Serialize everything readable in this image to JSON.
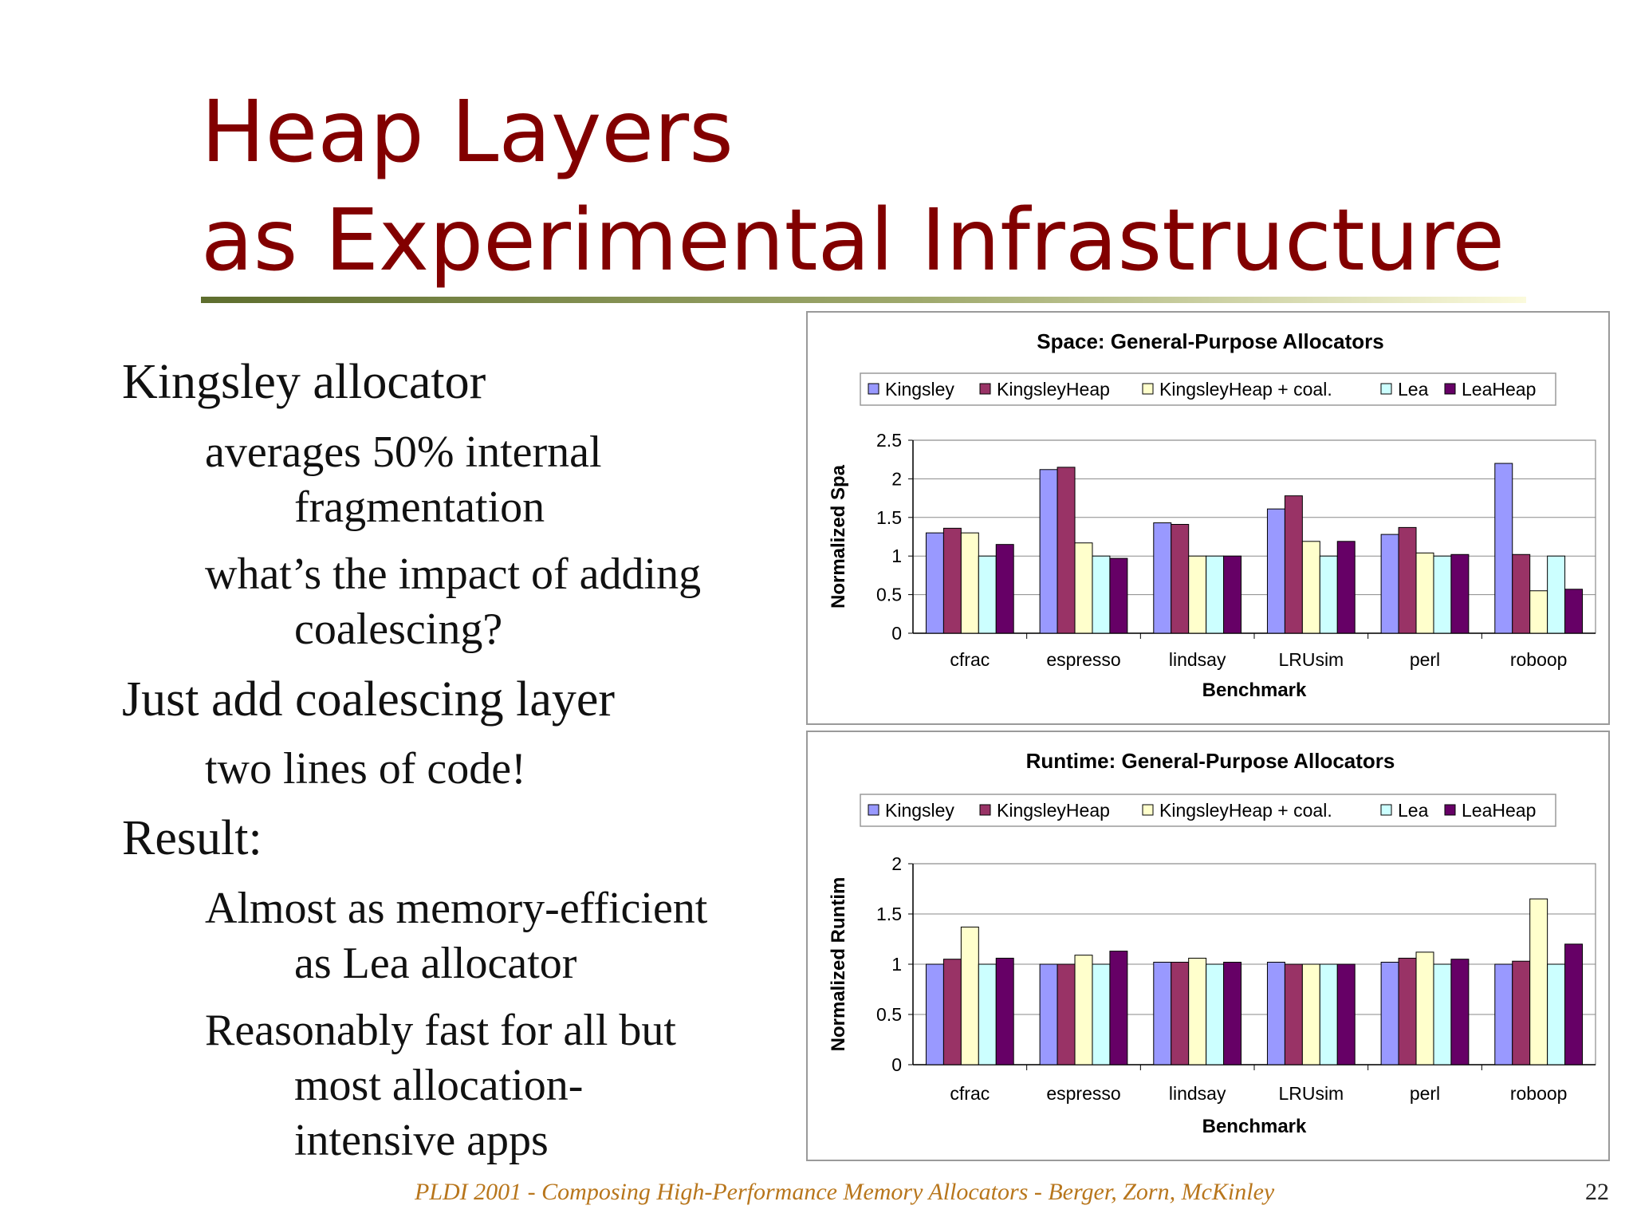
{
  "slide": {
    "title_line1": "Heap Layers",
    "title_line2": "as Experimental Infrastructure",
    "bullets": [
      {
        "level": 1,
        "text": "Kingsley allocator"
      },
      {
        "level": 2,
        "text": "averages 50% internal",
        "cont": "fragmentation"
      },
      {
        "level": 2,
        "text": "what’s the impact of adding",
        "cont": "coalescing?"
      },
      {
        "level": 1,
        "text": "Just add coalescing layer"
      },
      {
        "level": 2,
        "text": "two lines of code!"
      },
      {
        "level": 1,
        "text": "Result:"
      },
      {
        "level": 2,
        "text": "Almost as memory-efficient",
        "cont": "as Lea allocator"
      },
      {
        "level": 2,
        "text": "Reasonably fast for all but",
        "cont": "most allocation-",
        "cont2": "intensive apps"
      }
    ],
    "footer": "PLDI 2001 - Composing High-Performance Memory Allocators - Berger, Zorn, McKinley",
    "page_number": "22"
  },
  "colors": {
    "title": "#820000",
    "footer": "#b8761c",
    "series": [
      "#9999ff",
      "#993366",
      "#ffffcc",
      "#ccffff",
      "#660066"
    ]
  },
  "chart_data": [
    {
      "type": "bar",
      "title": "Space: General-Purpose Allocators",
      "xlabel": "Benchmark",
      "ylabel": "Normalized Spa",
      "ylim": [
        0,
        2.5
      ],
      "yticks": [
        "0",
        "0.5",
        "1",
        "1.5",
        "2",
        "2.5"
      ],
      "ytick_values": [
        0,
        0.5,
        1,
        1.5,
        2,
        2.5
      ],
      "legend_position": "top",
      "categories": [
        "cfrac",
        "espresso",
        "lindsay",
        "LRUsim",
        "perl",
        "roboop"
      ],
      "series": [
        {
          "name": "Kingsley",
          "values": [
            1.3,
            2.12,
            1.43,
            1.61,
            1.28,
            2.2
          ]
        },
        {
          "name": "KingsleyHeap",
          "values": [
            1.36,
            2.15,
            1.41,
            1.78,
            1.37,
            1.02
          ]
        },
        {
          "name": "KingsleyHeap + coal.",
          "values": [
            1.3,
            1.17,
            1.0,
            1.19,
            1.04,
            0.55
          ]
        },
        {
          "name": "Lea",
          "values": [
            1.0,
            1.0,
            1.0,
            1.0,
            1.0,
            1.0
          ]
        },
        {
          "name": "LeaHeap",
          "values": [
            1.15,
            0.97,
            1.0,
            1.19,
            1.02,
            0.57
          ]
        }
      ]
    },
    {
      "type": "bar",
      "title": "Runtime: General-Purpose Allocators",
      "xlabel": "Benchmark",
      "ylabel": "Normalized Runtim",
      "ylim": [
        0,
        2
      ],
      "yticks": [
        "0",
        "0.5",
        "1",
        "1.5",
        "2"
      ],
      "ytick_values": [
        0,
        0.5,
        1,
        1.5,
        2
      ],
      "legend_position": "top",
      "categories": [
        "cfrac",
        "espresso",
        "lindsay",
        "LRUsim",
        "perl",
        "roboop"
      ],
      "series": [
        {
          "name": "Kingsley",
          "values": [
            1.0,
            1.0,
            1.02,
            1.02,
            1.02,
            1.0
          ]
        },
        {
          "name": "KingsleyHeap",
          "values": [
            1.05,
            1.0,
            1.02,
            1.0,
            1.06,
            1.03
          ]
        },
        {
          "name": "KingsleyHeap + coal.",
          "values": [
            1.37,
            1.09,
            1.06,
            1.0,
            1.12,
            1.65
          ]
        },
        {
          "name": "Lea",
          "values": [
            1.0,
            1.0,
            1.0,
            1.0,
            1.0,
            1.0
          ]
        },
        {
          "name": "LeaHeap",
          "values": [
            1.06,
            1.13,
            1.02,
            1.0,
            1.05,
            1.2
          ]
        }
      ]
    }
  ]
}
